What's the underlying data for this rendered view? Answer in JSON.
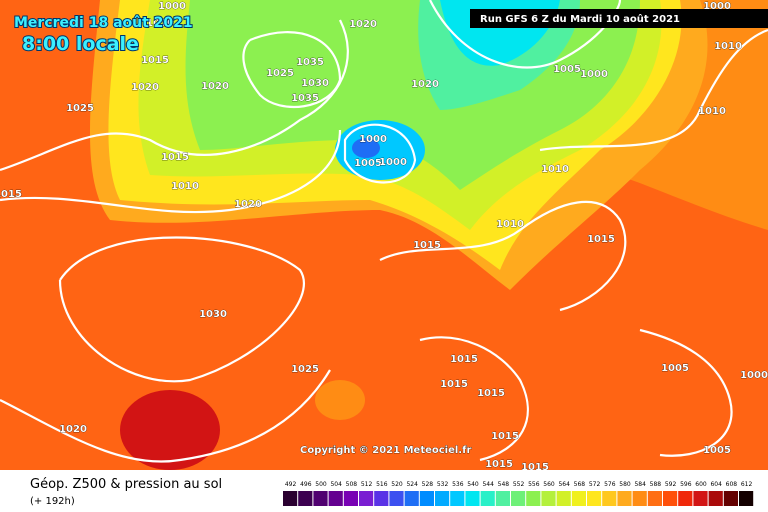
{
  "header": {
    "date": "Mercredi 18 août 2021",
    "time": "8:00 locale",
    "run": "Run GFS 6 Z du Mardi 10 août 2021"
  },
  "copyright": "Copyright © 2021 Meteociel.fr",
  "footer": {
    "title": "Géop. Z500 & pression au sol",
    "lead": "(+ 192h)"
  },
  "isobars": [
    1000,
    1010,
    1015,
    1020,
    1025,
    1015,
    1010,
    1020,
    1015,
    1020,
    1035,
    1030,
    1035,
    1025,
    1020,
    1020,
    1000,
    1005,
    1000,
    1005,
    1000,
    1000,
    1010,
    1010,
    1010,
    1010,
    1015,
    1015,
    1030,
    1025,
    1015,
    1015,
    1015,
    1015,
    1015,
    1015,
    1005,
    1000,
    1005,
    1020
  ],
  "scale": [
    {
      "label": 492,
      "color": "#2a0030"
    },
    {
      "label": 496,
      "color": "#3c0050"
    },
    {
      "label": 500,
      "color": "#500070"
    },
    {
      "label": 504,
      "color": "#640090"
    },
    {
      "label": 508,
      "color": "#7800b4"
    },
    {
      "label": 512,
      "color": "#7a1ed2"
    },
    {
      "label": 516,
      "color": "#5a32e6"
    },
    {
      "label": 520,
      "color": "#3c50f0"
    },
    {
      "label": 524,
      "color": "#1e6ef5"
    },
    {
      "label": 528,
      "color": "#008cff"
    },
    {
      "label": 532,
      "color": "#00aaff"
    },
    {
      "label": 536,
      "color": "#00c8ff"
    },
    {
      "label": 540,
      "color": "#00e6f0"
    },
    {
      "label": 544,
      "color": "#28f0c8"
    },
    {
      "label": 548,
      "color": "#50f0a0"
    },
    {
      "label": 552,
      "color": "#6ef078"
    },
    {
      "label": 556,
      "color": "#8cf050"
    },
    {
      "label": 560,
      "color": "#b4f03c"
    },
    {
      "label": 564,
      "color": "#d2f028"
    },
    {
      "label": 568,
      "color": "#f0f01e"
    },
    {
      "label": 572,
      "color": "#ffe61e"
    },
    {
      "label": 576,
      "color": "#ffc81e"
    },
    {
      "label": 580,
      "color": "#ffaa1e"
    },
    {
      "label": 584,
      "color": "#ff8c14"
    },
    {
      "label": 588,
      "color": "#ff6e14"
    },
    {
      "label": 592,
      "color": "#ff500a"
    },
    {
      "label": 596,
      "color": "#f0280a"
    },
    {
      "label": 600,
      "color": "#d21414"
    },
    {
      "label": 604,
      "color": "#aa0a0a"
    },
    {
      "label": 608,
      "color": "#640000"
    },
    {
      "label": 612,
      "color": "#140000"
    }
  ]
}
